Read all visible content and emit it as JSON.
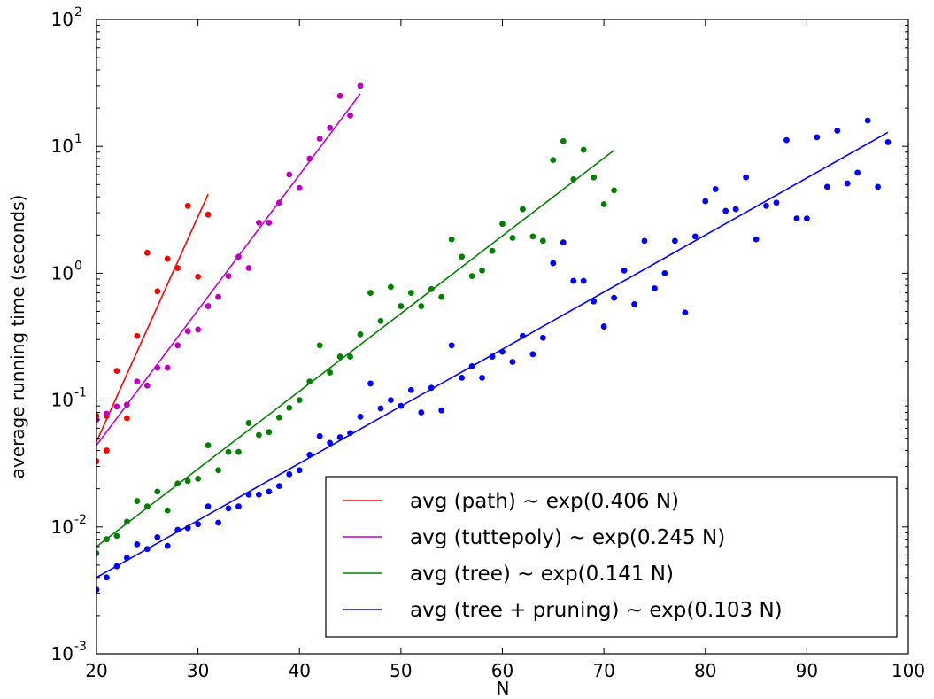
{
  "chart_data": {
    "type": "scatter",
    "title": "",
    "xlabel": "N",
    "ylabel": "average running time (seconds)",
    "xlim": [
      20,
      100
    ],
    "ylim": [
      0.001,
      100
    ],
    "yscale": "log",
    "grid": false,
    "legend_position": "bottom-right",
    "x_ticks": [
      {
        "value": 20,
        "label": "20"
      },
      {
        "value": 30,
        "label": "30"
      },
      {
        "value": 40,
        "label": "40"
      },
      {
        "value": 50,
        "label": "50"
      },
      {
        "value": 60,
        "label": "60"
      },
      {
        "value": 70,
        "label": "70"
      },
      {
        "value": 80,
        "label": "80"
      },
      {
        "value": 90,
        "label": "90"
      },
      {
        "value": 100,
        "label": "100"
      }
    ],
    "y_ticks": [
      {
        "value": 0.001,
        "base": "10",
        "exp": "-3"
      },
      {
        "value": 0.01,
        "base": "10",
        "exp": "-2"
      },
      {
        "value": 0.1,
        "base": "10",
        "exp": "-1"
      },
      {
        "value": 1,
        "base": "10",
        "exp": "0"
      },
      {
        "value": 10,
        "base": "10",
        "exp": "1"
      },
      {
        "value": 100,
        "base": "10",
        "exp": "2"
      }
    ],
    "series": [
      {
        "name": "avg (path) ~ exp(0.406 N)",
        "color": "#ff0000",
        "x": [
          20,
          20,
          21,
          21,
          22,
          23,
          24,
          25,
          26,
          27,
          28,
          29,
          30,
          31
        ],
        "y": [
          0.075,
          0.033,
          0.04,
          0.075,
          0.17,
          0.072,
          0.32,
          1.45,
          0.72,
          1.3,
          1.1,
          3.4,
          0.94,
          2.9
        ],
        "fit": {
          "x": [
            20,
            31
          ],
          "y": [
            0.047,
            4.2
          ]
        }
      },
      {
        "name": "avg (tuttepoly) ~ exp(0.245 N)",
        "color": "#bf00bf",
        "x": [
          20,
          21,
          22,
          23,
          24,
          25,
          26,
          27,
          28,
          29,
          30,
          31,
          32,
          33,
          34,
          35,
          36,
          37,
          38,
          39,
          40,
          41,
          42,
          43,
          44,
          45,
          46
        ],
        "y": [
          0.07,
          0.078,
          0.089,
          0.092,
          0.14,
          0.13,
          0.18,
          0.18,
          0.27,
          0.35,
          0.36,
          0.55,
          0.65,
          0.95,
          1.35,
          1.1,
          2.5,
          2.5,
          3.6,
          6.0,
          4.7,
          8.0,
          11.5,
          14.0,
          25.0,
          17.5,
          30.0
        ],
        "fit": {
          "x": [
            20,
            46
          ],
          "y": [
            0.044,
            26.0
          ]
        }
      },
      {
        "name": "avg (tree) ~ exp(0.141 N)",
        "color": "#008000",
        "x": [
          20,
          21,
          22,
          23,
          24,
          25,
          26,
          27,
          28,
          29,
          30,
          31,
          32,
          33,
          34,
          35,
          36,
          37,
          38,
          39,
          40,
          41,
          42,
          43,
          44,
          45,
          46,
          47,
          48,
          49,
          50,
          51,
          52,
          53,
          54,
          55,
          56,
          57,
          58,
          59,
          60,
          61,
          62,
          63,
          64,
          65,
          66,
          67,
          68,
          69,
          70,
          71
        ],
        "y": [
          0.0062,
          0.008,
          0.0085,
          0.011,
          0.016,
          0.0145,
          0.019,
          0.0135,
          0.022,
          0.023,
          0.024,
          0.044,
          0.028,
          0.039,
          0.039,
          0.066,
          0.053,
          0.056,
          0.073,
          0.087,
          0.1,
          0.14,
          0.27,
          0.165,
          0.22,
          0.22,
          0.33,
          0.7,
          0.42,
          0.78,
          0.55,
          0.7,
          0.55,
          0.75,
          0.65,
          1.85,
          1.35,
          0.95,
          1.05,
          1.5,
          2.45,
          1.9,
          3.2,
          1.95,
          1.8,
          7.8,
          11.0,
          5.5,
          9.4,
          5.7,
          3.5,
          4.5
        ],
        "fit": {
          "x": [
            20,
            71
          ],
          "y": [
            0.007,
            9.3
          ]
        }
      },
      {
        "name": "avg (tree + pruning) ~ exp(0.103 N)",
        "color": "#0000ff",
        "x": [
          20,
          21,
          22,
          23,
          24,
          25,
          26,
          27,
          28,
          29,
          30,
          31,
          32,
          33,
          34,
          35,
          36,
          37,
          38,
          39,
          40,
          41,
          42,
          43,
          44,
          45,
          46,
          47,
          48,
          49,
          50,
          51,
          52,
          53,
          54,
          55,
          56,
          57,
          58,
          59,
          60,
          61,
          62,
          63,
          64,
          65,
          66,
          67,
          68,
          69,
          70,
          71,
          72,
          73,
          74,
          75,
          76,
          77,
          78,
          79,
          80,
          81,
          82,
          83,
          84,
          85,
          86,
          87,
          88,
          89,
          90,
          91,
          92,
          93,
          94,
          95,
          96,
          97,
          98
        ],
        "y": [
          0.0032,
          0.004,
          0.0049,
          0.0057,
          0.0073,
          0.0067,
          0.0083,
          0.0071,
          0.0095,
          0.0098,
          0.0105,
          0.0145,
          0.0108,
          0.014,
          0.0145,
          0.018,
          0.018,
          0.019,
          0.021,
          0.026,
          0.028,
          0.037,
          0.052,
          0.046,
          0.051,
          0.055,
          0.074,
          0.135,
          0.086,
          0.1,
          0.09,
          0.12,
          0.08,
          0.125,
          0.083,
          0.27,
          0.15,
          0.185,
          0.15,
          0.22,
          0.24,
          0.2,
          0.32,
          0.23,
          0.31,
          1.2,
          1.75,
          0.87,
          0.87,
          0.6,
          0.38,
          0.64,
          1.05,
          0.57,
          1.8,
          0.76,
          1.0,
          1.8,
          0.49,
          1.95,
          3.7,
          4.6,
          3.1,
          3.2,
          5.7,
          1.85,
          3.4,
          3.6,
          11.2,
          2.7,
          2.7,
          11.8,
          4.8,
          13.3,
          5.1,
          6.2,
          16.0,
          4.8,
          10.8
        ],
        "fit": {
          "x": [
            20,
            98
          ],
          "y": [
            0.004,
            12.9
          ]
        }
      }
    ]
  }
}
